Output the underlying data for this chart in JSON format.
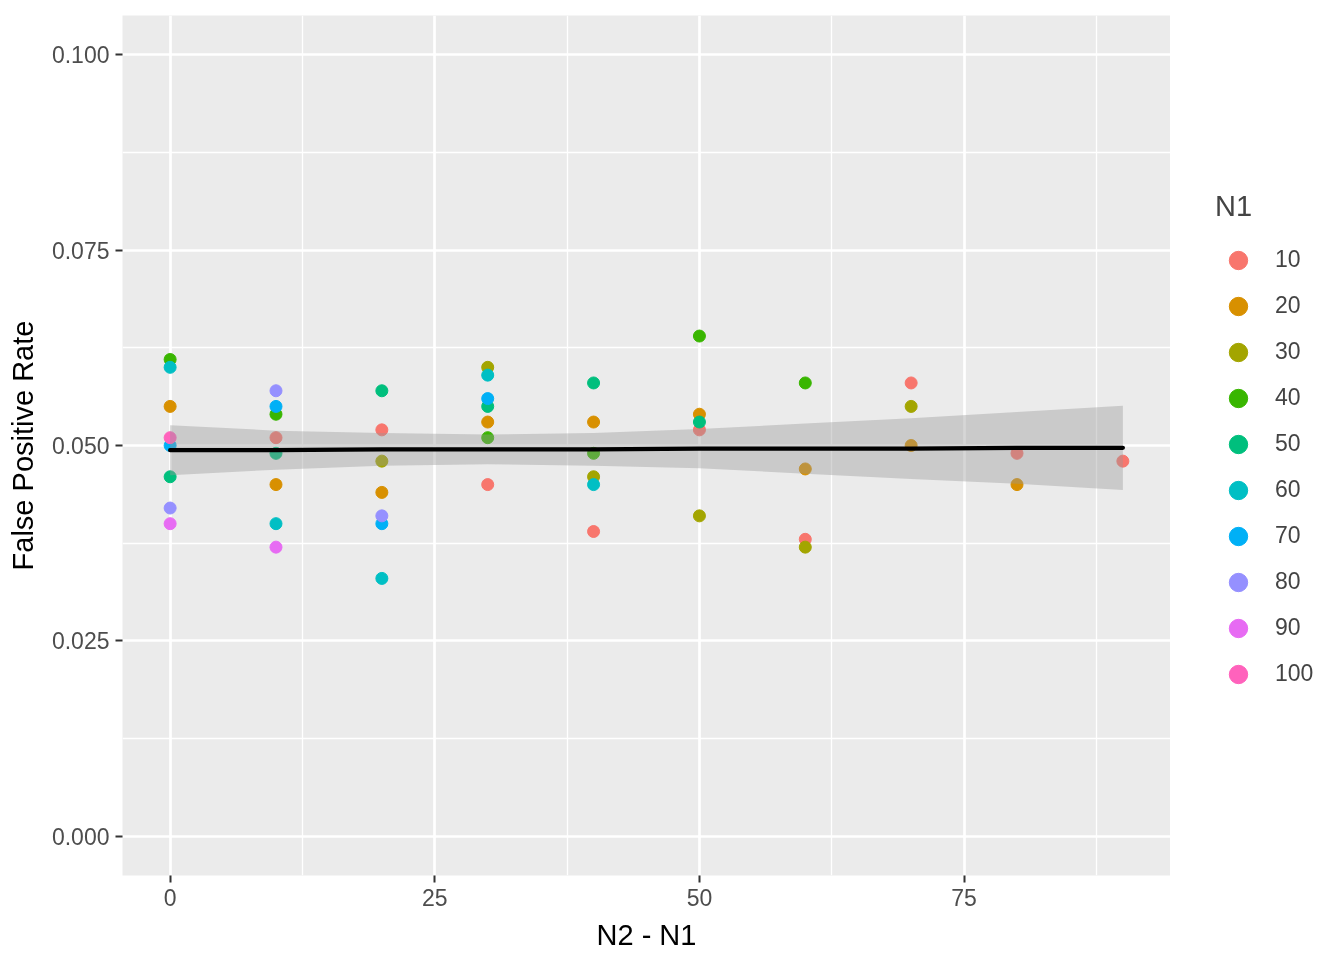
{
  "chart_data": {
    "type": "scatter",
    "xlabel": "N2 - N1",
    "ylabel": "False Positive Rate",
    "legend_title": "N1",
    "xlim": [
      -4.5,
      94.5
    ],
    "ylim": [
      -0.005,
      0.105
    ],
    "xticks": [
      0,
      25,
      50,
      75
    ],
    "yticks": [
      {
        "value": 0,
        "label": "0.000"
      },
      {
        "value": 0.025,
        "label": "0.025"
      },
      {
        "value": 0.05,
        "label": "0.050"
      },
      {
        "value": 0.075,
        "label": "0.075"
      },
      {
        "value": 0.1,
        "label": "0.100"
      }
    ],
    "grid": true,
    "legend": "right",
    "marker": "circle",
    "series": [
      {
        "name": "10",
        "color": "#F8766D",
        "x": [
          10,
          20,
          30,
          40,
          50,
          60,
          70,
          80,
          90
        ],
        "values": [
          0.051,
          0.052,
          0.045,
          0.039,
          0.052,
          0.038,
          0.058,
          0.049,
          0.048
        ]
      },
      {
        "name": "20",
        "color": "#D89000",
        "x": [
          0,
          10,
          20,
          30,
          40,
          50,
          60,
          70,
          80
        ],
        "values": [
          0.055,
          0.045,
          0.044,
          0.053,
          0.053,
          0.054,
          0.047,
          0.05,
          0.045
        ]
      },
      {
        "name": "30",
        "color": "#A3A500",
        "x": [
          20,
          30,
          40,
          50,
          60,
          70
        ],
        "values": [
          0.048,
          0.06,
          0.046,
          0.041,
          0.037,
          0.055
        ]
      },
      {
        "name": "40",
        "color": "#39B600",
        "x": [
          0,
          10,
          30,
          40,
          50,
          60
        ],
        "values": [
          0.061,
          0.054,
          0.051,
          0.049,
          0.064,
          0.058
        ]
      },
      {
        "name": "50",
        "color": "#00BF7D",
        "x": [
          0,
          10,
          20,
          30,
          40,
          50
        ],
        "values": [
          0.046,
          0.049,
          0.057,
          0.055,
          0.058,
          0.053
        ]
      },
      {
        "name": "60",
        "color": "#00BFC4",
        "x": [
          0,
          10,
          20,
          30,
          40
        ],
        "values": [
          0.06,
          0.04,
          0.033,
          0.059,
          0.045
        ]
      },
      {
        "name": "70",
        "color": "#00B0F6",
        "x": [
          0,
          10,
          20,
          30
        ],
        "values": [
          0.05,
          0.055,
          0.04,
          0.056
        ]
      },
      {
        "name": "80",
        "color": "#9590FF",
        "x": [
          0,
          10,
          20
        ],
        "values": [
          0.042,
          0.057,
          0.041
        ]
      },
      {
        "name": "90",
        "color": "#E76BF3",
        "x": [
          0,
          10
        ],
        "values": [
          0.04,
          0.037
        ]
      },
      {
        "name": "100",
        "color": "#FF62BC",
        "x": [
          0
        ],
        "values": [
          0.051
        ]
      },
      {
        "type": "line",
        "marker": "none",
        "color": "#000000",
        "x": [
          0,
          10,
          20,
          30,
          40,
          50,
          60,
          70,
          80,
          90
        ],
        "values": [
          0.0494,
          0.0494,
          0.0495,
          0.0495,
          0.0495,
          0.0496,
          0.0496,
          0.0496,
          0.0497,
          0.0497
        ],
        "lower": [
          0.0462,
          0.0469,
          0.0474,
          0.0476,
          0.0474,
          0.0471,
          0.0464,
          0.0457,
          0.0451,
          0.0443
        ],
        "upper": [
          0.0526,
          0.0519,
          0.0516,
          0.0514,
          0.0516,
          0.0521,
          0.0528,
          0.0535,
          0.0543,
          0.0551
        ]
      }
    ]
  }
}
